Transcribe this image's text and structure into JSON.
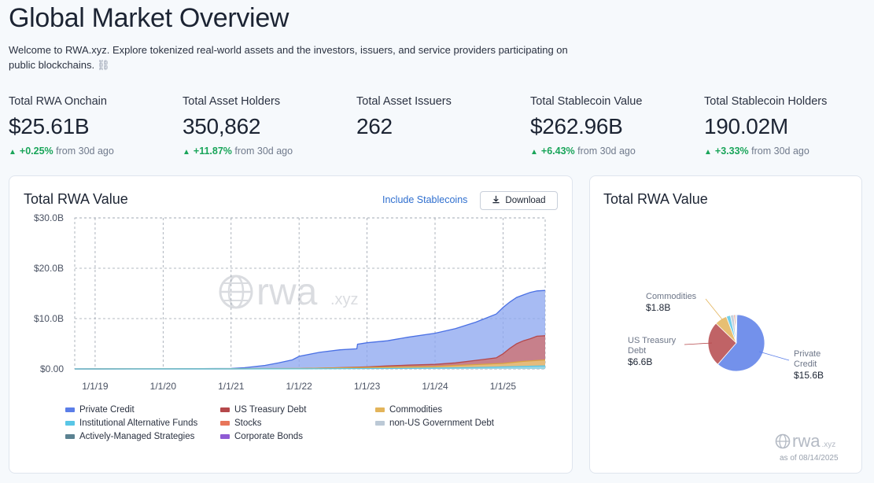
{
  "page": {
    "title": "Global Market Overview",
    "welcome": "Welcome to RWA.xyz. Explore tokenized real-world assets and the investors, issuers, and service providers participating on public blockchains.",
    "welcome_icon": "chain-link-icon"
  },
  "stats": [
    {
      "label": "Total RWA Onchain",
      "value": "$25.61B",
      "change": "+0.25%",
      "period": "from 30d ago"
    },
    {
      "label": "Total Asset Holders",
      "value": "350,862",
      "change": "+11.87%",
      "period": "from 30d ago"
    },
    {
      "label": "Total Asset Issuers",
      "value": "262"
    },
    {
      "label": "Total Stablecoin Value",
      "value": "$262.96B",
      "change": "+6.43%",
      "period": "from 30d ago"
    },
    {
      "label": "Total Stablecoin Holders",
      "value": "190.02M",
      "change": "+3.33%",
      "period": "from 30d ago"
    }
  ],
  "area_card": {
    "title": "Total RWA Value",
    "include_link": "Include Stablecoins",
    "download_label": "Download",
    "watermark": {
      "main": "rwa",
      "suffix": ".xyz"
    }
  },
  "pie_card": {
    "title": "Total RWA Value",
    "footer_logo": {
      "main": "rwa",
      "suffix": ".xyz"
    },
    "as_of": "as of 08/14/2025"
  },
  "colors": {
    "accent": "#2f6fcf",
    "positive": "#1aa55a",
    "private_credit": "#5b7ee8",
    "us_treasury": "#b5484b",
    "commodities": "#e3b45a"
  },
  "chart_data": [
    {
      "type": "area",
      "title": "Total RWA Value",
      "y_ticks": [
        "$0.00",
        "$10.0B",
        "$20.0B",
        "$30.0B"
      ],
      "ylim": [
        0,
        30
      ],
      "x_ticks": [
        "1/1/19",
        "1/1/20",
        "1/1/21",
        "1/1/22",
        "1/1/23",
        "1/1/24",
        "1/1/25"
      ],
      "xlim": [
        2018.7,
        2025.62
      ],
      "grid": true,
      "legend": [
        {
          "name": "Private Credit",
          "color": "#5b7ee8"
        },
        {
          "name": "US Treasury Debt",
          "color": "#b5484b"
        },
        {
          "name": "Commodities",
          "color": "#e3b45a"
        },
        {
          "name": "Institutional Alternative Funds",
          "color": "#59c6e6"
        },
        {
          "name": "Stocks",
          "color": "#e8765a"
        },
        {
          "name": "non-US Government Debt",
          "color": "#bcc9d6"
        },
        {
          "name": "Actively-Managed Strategies",
          "color": "#5b8291"
        },
        {
          "name": "Corporate Bonds",
          "color": "#8f5bd4"
        }
      ],
      "series": [
        {
          "name": "Private Credit",
          "x": [
            2018.7,
            2019.5,
            2020.0,
            2020.5,
            2021.0,
            2021.2,
            2021.5,
            2021.7,
            2021.9,
            2022.0,
            2022.3,
            2022.6,
            2022.85,
            2022.86,
            2023.0,
            2023.3,
            2023.6,
            2024.0,
            2024.3,
            2024.6,
            2024.9,
            2025.0,
            2025.1,
            2025.2,
            2025.3,
            2025.4,
            2025.5,
            2025.62
          ],
          "values": [
            0.0,
            0.01,
            0.02,
            0.05,
            0.1,
            0.25,
            0.7,
            1.2,
            1.8,
            2.5,
            3.3,
            3.8,
            4.0,
            4.9,
            5.2,
            5.6,
            6.3,
            7.1,
            8.0,
            9.3,
            10.9,
            12.2,
            13.3,
            14.2,
            14.7,
            15.2,
            15.5,
            15.6
          ]
        },
        {
          "name": "US Treasury Debt",
          "x": [
            2018.7,
            2021.0,
            2022.0,
            2022.5,
            2023.0,
            2023.3,
            2023.6,
            2024.0,
            2024.3,
            2024.6,
            2024.9,
            2025.0,
            2025.1,
            2025.2,
            2025.3,
            2025.4,
            2025.5,
            2025.62
          ],
          "values": [
            0.0,
            0.0,
            0.05,
            0.2,
            0.4,
            0.6,
            0.75,
            0.9,
            1.2,
            1.7,
            2.2,
            3.0,
            4.1,
            5.0,
            5.6,
            6.0,
            6.5,
            6.6
          ]
        },
        {
          "name": "Commodities",
          "x": [
            2018.7,
            2021.0,
            2022.0,
            2023.0,
            2024.0,
            2024.5,
            2025.0,
            2025.3,
            2025.62
          ],
          "values": [
            0.0,
            0.05,
            0.1,
            0.3,
            0.5,
            0.8,
            1.1,
            1.5,
            1.8
          ]
        },
        {
          "name": "Institutional Alternative Funds",
          "x": [
            2018.7,
            2022.0,
            2023.5,
            2024.5,
            2025.0,
            2025.62
          ],
          "values": [
            0.0,
            0.02,
            0.1,
            0.25,
            0.4,
            0.6
          ]
        }
      ]
    },
    {
      "type": "pie",
      "title": "Total RWA Value",
      "slices": [
        {
          "name": "Private Credit",
          "value": 15.6,
          "display": "$15.6B",
          "color": "#5b7ee8"
        },
        {
          "name": "US Treasury Debt",
          "value": 6.6,
          "display": "$6.6B",
          "color": "#b5484b"
        },
        {
          "name": "Commodities",
          "value": 1.8,
          "display": "$1.8B",
          "color": "#e3b45a"
        },
        {
          "name": "Institutional Alternative Funds",
          "value": 0.6,
          "color": "#59c6e6"
        },
        {
          "name": "non-US Government Debt",
          "value": 0.5,
          "color": "#bcc9d6"
        },
        {
          "name": "Stocks",
          "value": 0.2,
          "color": "#e8765a"
        },
        {
          "name": "Actively-Managed Strategies",
          "value": 0.15,
          "color": "#5b8291"
        },
        {
          "name": "Corporate Bonds",
          "value": 0.1,
          "color": "#8f5bd4"
        }
      ],
      "labels": {
        "commodities": {
          "name": "Commodities",
          "value": "$1.8B"
        },
        "treasury": {
          "name": "US Treasury Debt",
          "value": "$6.6B"
        },
        "private_credit": {
          "name": "Private Credit",
          "value": "$15.6B"
        }
      }
    }
  ]
}
